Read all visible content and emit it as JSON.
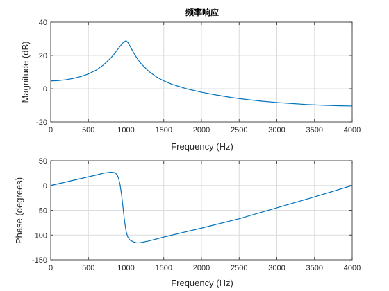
{
  "chart_data": [
    {
      "type": "line",
      "title": "频率响应",
      "xlabel": "Frequency (Hz)",
      "ylabel": "Magnitude (dB)",
      "xlim": [
        0,
        4000
      ],
      "ylim": [
        -20,
        40
      ],
      "xticks": [
        "0",
        "500",
        "1000",
        "1500",
        "2000",
        "2500",
        "3000",
        "3500",
        "4000"
      ],
      "yticks": [
        "-20",
        "0",
        "20",
        "40"
      ],
      "grid": true,
      "line_color": "#0072BD",
      "series": [
        {
          "x": [
            0,
            100,
            200,
            300,
            400,
            500,
            600,
            700,
            800,
            850,
            900,
            950,
            975,
            1000,
            1025,
            1050,
            1100,
            1150,
            1200,
            1300,
            1400,
            1500,
            1600,
            1800,
            2000,
            2200,
            2400,
            2600,
            2800,
            3000,
            3200,
            3400,
            3600,
            3800,
            4000
          ],
          "y": [
            4.7,
            4.9,
            5.4,
            6.2,
            7.3,
            8.9,
            11.1,
            14.3,
            18.6,
            21.3,
            24.3,
            27.2,
            28.3,
            28.8,
            27.7,
            25.8,
            21.6,
            18.0,
            15.0,
            10.5,
            7.2,
            4.7,
            2.8,
            0.0,
            -2.1,
            -3.8,
            -5.3,
            -6.5,
            -7.5,
            -8.3,
            -8.9,
            -9.5,
            -9.9,
            -10.2,
            -10.4
          ]
        }
      ]
    },
    {
      "type": "line",
      "xlabel": "Frequency (Hz)",
      "ylabel": "Phase (degrees)",
      "xlim": [
        0,
        4000
      ],
      "ylim": [
        -150,
        50
      ],
      "xticks": [
        "0",
        "500",
        "1000",
        "1500",
        "2000",
        "2500",
        "3000",
        "3500",
        "4000"
      ],
      "yticks": [
        "-150",
        "-100",
        "-50",
        "0",
        "50"
      ],
      "grid": true,
      "line_color": "#0072BD",
      "series": [
        {
          "x": [
            0,
            200,
            400,
            600,
            700,
            800,
            850,
            880,
            900,
            920,
            940,
            960,
            980,
            1000,
            1020,
            1050,
            1100,
            1150,
            1200,
            1300,
            1500,
            2000,
            2500,
            3000,
            3500,
            4000
          ],
          "y": [
            0,
            7,
            14,
            21,
            25,
            27,
            26,
            22,
            15,
            2,
            -18,
            -45,
            -72,
            -92,
            -103,
            -110,
            -114,
            -116,
            -115,
            -112,
            -104,
            -86,
            -67,
            -45,
            -23,
            0
          ]
        }
      ]
    }
  ]
}
